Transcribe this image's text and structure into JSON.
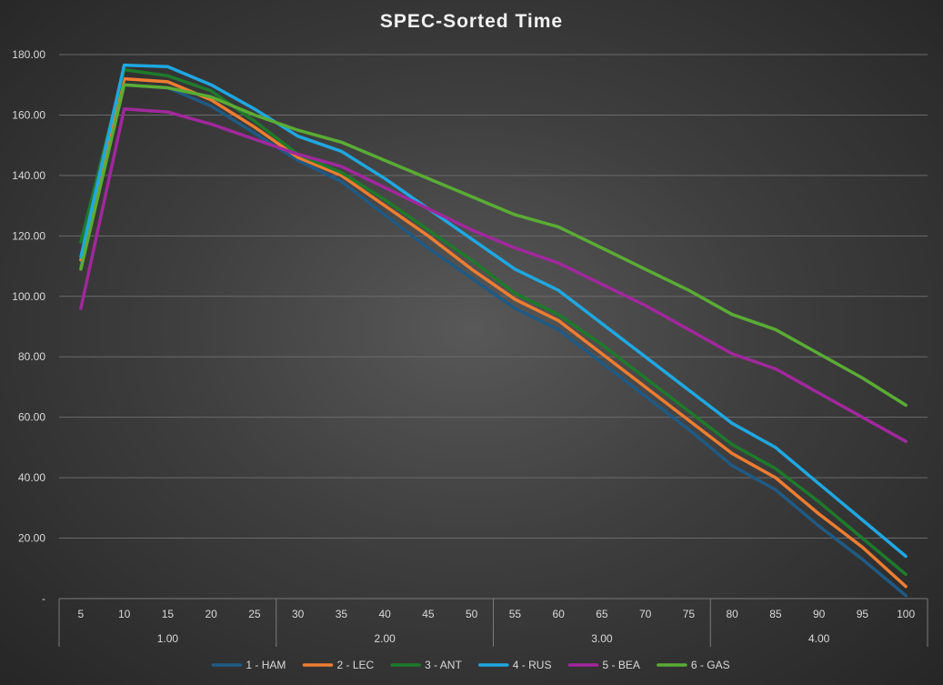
{
  "chart_data": {
    "type": "line",
    "title": "SPEC-Sorted Time",
    "xlabel": "",
    "ylabel": "",
    "ylim": [
      0,
      180
    ],
    "y_ticks": [
      "-",
      "20.00",
      "40.00",
      "60.00",
      "80.00",
      "100.00",
      "120.00",
      "140.00",
      "160.00",
      "180.00"
    ],
    "categories": [
      "5",
      "10",
      "15",
      "20",
      "25",
      "30",
      "35",
      "40",
      "45",
      "50",
      "55",
      "60",
      "65",
      "70",
      "75",
      "80",
      "85",
      "90",
      "95",
      "100"
    ],
    "groups": [
      {
        "label": "1.00",
        "count": 5
      },
      {
        "label": "2.00",
        "count": 5
      },
      {
        "label": "3.00",
        "count": 5
      },
      {
        "label": "4.00",
        "count": 5
      }
    ],
    "legend_position": "bottom",
    "series": [
      {
        "name": "1 - HAM",
        "color": "#1f5a84",
        "values": [
          110,
          170,
          169,
          163,
          154,
          145,
          138,
          127,
          116,
          106,
          96,
          89,
          78,
          67,
          56,
          44,
          36,
          24,
          13,
          1
        ]
      },
      {
        "name": "2 - LEC",
        "color": "#ed7d31",
        "values": [
          112,
          172,
          171,
          165,
          156,
          146,
          140,
          130,
          120,
          109,
          99,
          92,
          81,
          70,
          59,
          48,
          40,
          28,
          17,
          4
        ]
      },
      {
        "name": "3 - ANT",
        "color": "#1e7a2b",
        "values": [
          118,
          175,
          173,
          168,
          158,
          147,
          141,
          132,
          122,
          112,
          101,
          94,
          84,
          73,
          62,
          51,
          43,
          32,
          20,
          8
        ]
      },
      {
        "name": "4 - RUS",
        "color": "#1fa7e0",
        "values": [
          113,
          176.5,
          176,
          170,
          162,
          153,
          148,
          139,
          129,
          119,
          109,
          102,
          91,
          80,
          69,
          58,
          50,
          38,
          26,
          14
        ]
      },
      {
        "name": "5 - BEA",
        "color": "#a0289c",
        "values": [
          96,
          162,
          161,
          157,
          152,
          147,
          143,
          136,
          129,
          122,
          116,
          111,
          104,
          97,
          89,
          81,
          76,
          68,
          60,
          52
        ]
      },
      {
        "name": "6 - GAS",
        "color": "#5aac34",
        "values": [
          109,
          170,
          169,
          166,
          160,
          155,
          151,
          145,
          139,
          133,
          127,
          123,
          116,
          109,
          102,
          94,
          89,
          81,
          73,
          64
        ]
      }
    ]
  }
}
